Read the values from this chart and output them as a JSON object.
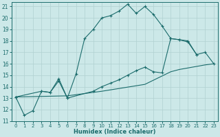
{
  "xlabel": "Humidex (Indice chaleur)",
  "bg_color": "#cce8e8",
  "grid_color": "#b0d0d0",
  "line_color": "#1a6b6b",
  "xlim": [
    -0.5,
    23.5
  ],
  "ylim": [
    11,
    21.4
  ],
  "xticks": [
    0,
    1,
    2,
    3,
    4,
    5,
    6,
    7,
    8,
    9,
    10,
    11,
    12,
    13,
    14,
    15,
    16,
    17,
    18,
    19,
    20,
    21,
    22,
    23
  ],
  "yticks": [
    11,
    12,
    13,
    14,
    15,
    16,
    17,
    18,
    19,
    20,
    21
  ],
  "curve1_x": [
    0,
    1,
    2,
    3,
    4,
    5,
    6,
    7,
    8,
    9,
    10,
    11,
    12,
    13,
    14,
    15,
    16,
    17,
    18,
    19,
    20,
    21
  ],
  "curve1_y": [
    13.1,
    11.5,
    11.9,
    13.6,
    13.5,
    14.7,
    13.0,
    15.1,
    18.2,
    19.0,
    20.0,
    20.2,
    20.6,
    21.2,
    20.4,
    21.0,
    20.3,
    19.3,
    18.2,
    18.1,
    17.9,
    16.8
  ],
  "curve2_x": [
    0,
    3,
    4,
    5,
    6,
    9,
    10,
    11,
    12,
    13,
    14,
    15,
    16,
    17,
    18,
    19,
    20,
    21,
    22,
    23
  ],
  "curve2_y": [
    13.1,
    13.6,
    13.5,
    14.5,
    13.0,
    13.6,
    14.0,
    14.3,
    14.6,
    15.0,
    15.4,
    15.7,
    15.3,
    15.2,
    18.2,
    18.1,
    18.0,
    16.8,
    17.0,
    16.0
  ],
  "curve3_x": [
    0,
    6,
    10,
    15,
    18,
    19,
    22,
    23
  ],
  "curve3_y": [
    13.1,
    13.2,
    13.6,
    14.2,
    15.3,
    15.5,
    15.9,
    16.0
  ]
}
